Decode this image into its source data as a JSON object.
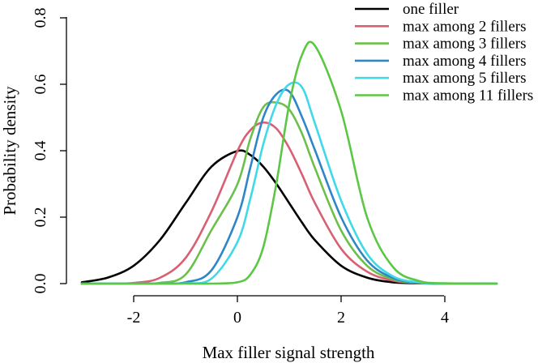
{
  "chart_data": {
    "type": "line",
    "title": "",
    "xlabel": "Max filler signal strength",
    "ylabel": "Probability density",
    "xlim": [
      -3,
      5
    ],
    "ylim": [
      0,
      0.8
    ],
    "xticks": [
      -2,
      0,
      2,
      4
    ],
    "xtick_labels": [
      "-2",
      "0",
      "2",
      "4"
    ],
    "yticks": [
      0,
      0.2,
      0.4,
      0.6,
      0.8
    ],
    "ytick_labels": [
      "0.0",
      "0.2",
      "0.4",
      "0.6",
      "0.8"
    ],
    "grid": false,
    "legend_position": "top-right",
    "x": [
      -3.0,
      -2.5,
      -2.0,
      -1.5,
      -1.0,
      -0.5,
      0.0,
      0.25,
      0.5,
      0.75,
      1.0,
      1.25,
      1.5,
      2.0,
      2.5,
      3.0,
      3.5,
      4.0,
      5.0
    ],
    "series": [
      {
        "name": "one filler",
        "color": "#000000",
        "values": [
          0.004,
          0.018,
          0.054,
          0.13,
          0.242,
          0.352,
          0.399,
          0.387,
          0.352,
          0.301,
          0.242,
          0.183,
          0.13,
          0.054,
          0.018,
          0.004,
          0.001,
          0.0,
          0.0
        ]
      },
      {
        "name": "max among 2 fillers",
        "color": "#d95f73",
        "values": [
          0.0,
          0.0,
          0.002,
          0.017,
          0.077,
          0.217,
          0.399,
          0.462,
          0.485,
          0.467,
          0.408,
          0.327,
          0.241,
          0.105,
          0.036,
          0.009,
          0.002,
          0.0,
          0.0
        ]
      },
      {
        "name": "max among 3 fillers",
        "color": "#6cc04a",
        "values": [
          0.0,
          0.0,
          0.0,
          0.002,
          0.027,
          0.161,
          0.299,
          0.436,
          0.531,
          0.545,
          0.524,
          0.45,
          0.346,
          0.16,
          0.054,
          0.013,
          0.002,
          0.0,
          0.0
        ]
      },
      {
        "name": "max among 4 fillers",
        "color": "#2f86c7",
        "values": [
          0.0,
          0.0,
          0.0,
          0.0,
          0.004,
          0.04,
          0.2,
          0.35,
          0.5,
          0.57,
          0.578,
          0.5,
          0.4,
          0.2,
          0.07,
          0.017,
          0.003,
          0.0,
          0.0
        ]
      },
      {
        "name": "max among 5 fillers",
        "color": "#3fd9e8",
        "values": [
          0.0,
          0.0,
          0.0,
          0.0,
          0.001,
          0.015,
          0.125,
          0.256,
          0.42,
          0.54,
          0.6,
          0.59,
          0.48,
          0.25,
          0.09,
          0.022,
          0.004,
          0.0,
          0.0
        ]
      },
      {
        "name": "max among 11 fillers",
        "color": "#5cc744",
        "values": [
          0.0,
          0.0,
          0.0,
          0.0,
          0.0,
          0.0,
          0.004,
          0.027,
          0.11,
          0.3,
          0.54,
          0.69,
          0.715,
          0.52,
          0.2,
          0.05,
          0.008,
          0.001,
          0.0
        ]
      }
    ]
  }
}
